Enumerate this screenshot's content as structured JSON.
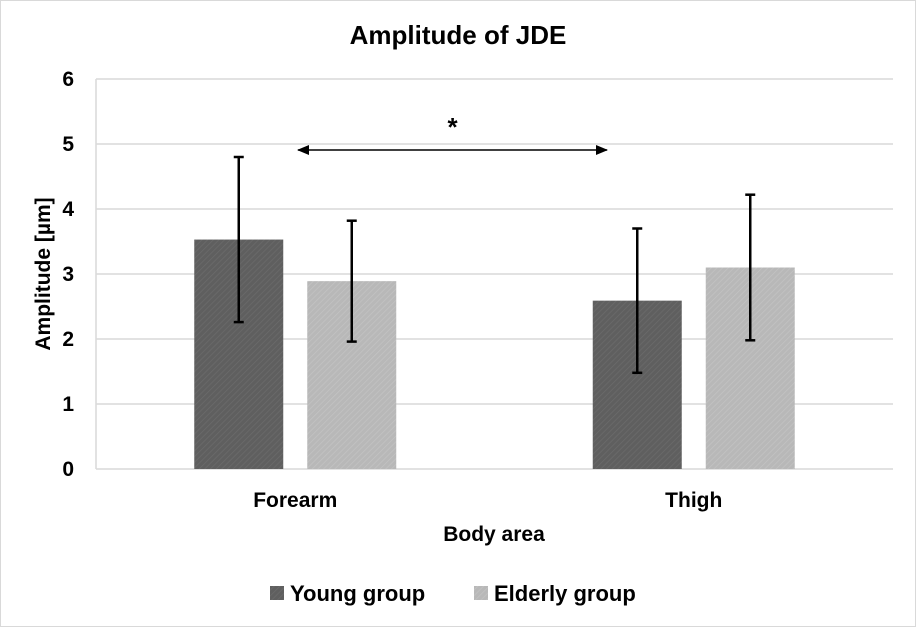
{
  "chart_data": {
    "type": "bar",
    "title": "Amplitude of JDE",
    "xlabel": "Body area",
    "ylabel": "Amplitude [µm]",
    "ylim": [
      0,
      6
    ],
    "yticks": [
      "0",
      "1",
      "2",
      "3",
      "4",
      "5",
      "6"
    ],
    "categories": [
      "Forearm",
      "Thigh"
    ],
    "series": [
      {
        "name": "Young group",
        "color": "#5f5f5f",
        "values": [
          3.53,
          2.59
        ],
        "errors": [
          1.27,
          1.11
        ]
      },
      {
        "name": "Elderly group",
        "color": "#b8b8b8",
        "values": [
          2.89,
          3.1
        ],
        "errors": [
          0.93,
          1.12
        ]
      }
    ],
    "grid": true,
    "legend_position": "bottom",
    "annotations": [
      {
        "text": "*",
        "type": "double-arrow",
        "from_category": "Forearm",
        "to_category": "Thigh"
      }
    ]
  }
}
